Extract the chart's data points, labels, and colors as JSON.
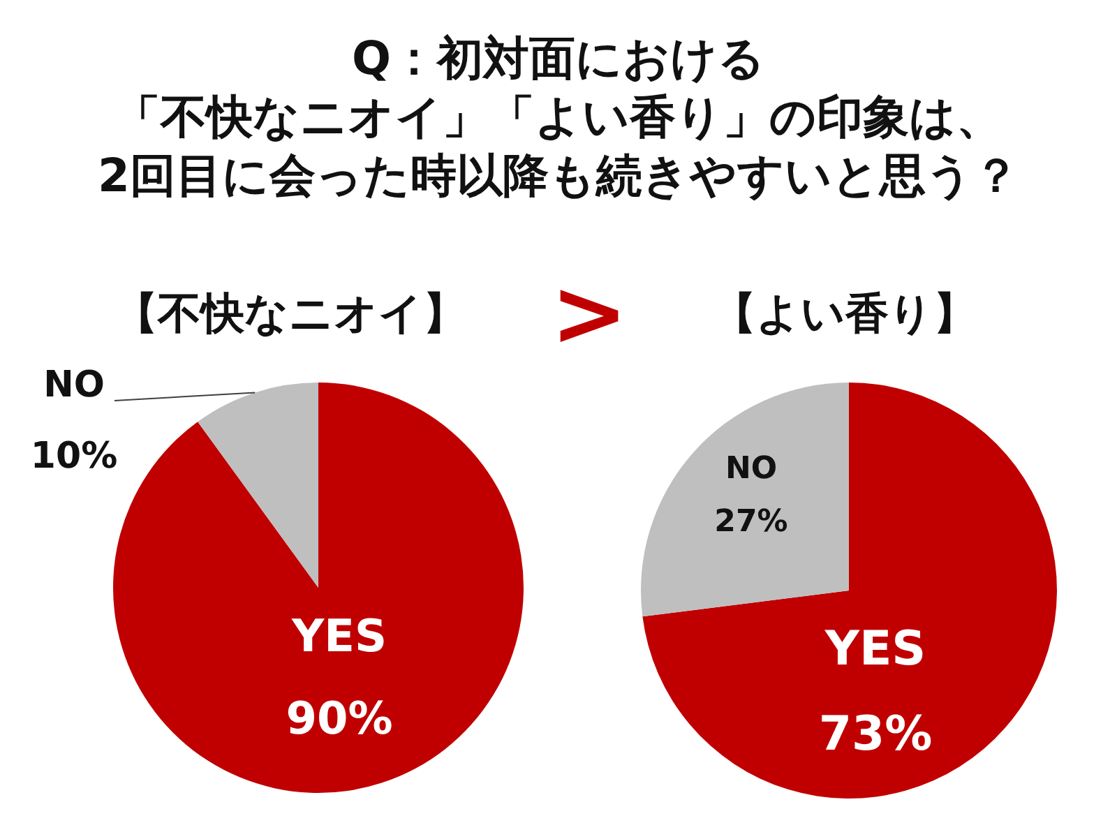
{
  "chart_data": [
    {
      "type": "pie",
      "title": "Q：初対面における「不快なニオイ」「よい香り」の印象は、2回目に会った時以降も続きやすいと思う？",
      "subtitle": "【不快なニオイ】",
      "categories": [
        "YES",
        "NO"
      ],
      "values": [
        90,
        10
      ],
      "colors": [
        "#c00000",
        "#bfbfbf"
      ],
      "value_labels": [
        "90%",
        "10%"
      ],
      "annotations": [
        ">"
      ]
    },
    {
      "type": "pie",
      "title": "【よい香り】",
      "categories": [
        "YES",
        "NO"
      ],
      "values": [
        73,
        27
      ],
      "colors": [
        "#c00000",
        "#bfbfbf"
      ],
      "value_labels": [
        "73%",
        "27%"
      ]
    }
  ]
}
